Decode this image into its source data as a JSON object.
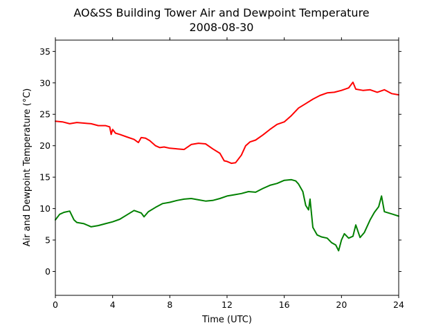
{
  "chart_data": {
    "type": "line",
    "title": "AO&SS Building Tower Air and Dewpoint Temperature",
    "subtitle": "2008-08-30",
    "xlabel": "Time (UTC)",
    "ylabel": "Air and Dewpoint Temperature (°C)",
    "xlim": [
      0,
      24
    ],
    "ylim": [
      -3.8,
      36.8
    ],
    "xticks": [
      0,
      4,
      8,
      12,
      16,
      20,
      24
    ],
    "yticks": [
      0,
      5,
      10,
      15,
      20,
      25,
      30,
      35
    ],
    "grid": false,
    "legend": "none",
    "series": [
      {
        "color": "#ff0000",
        "x": [
          0,
          0.5,
          1,
          1.5,
          2,
          2.5,
          3,
          3.5,
          3.8,
          3.9,
          4.0,
          4.2,
          4.5,
          5,
          5.5,
          5.8,
          6,
          6.3,
          6.6,
          7,
          7.3,
          7.6,
          8,
          8.5,
          9,
          9.5,
          10,
          10.5,
          11,
          11.5,
          11.8,
          12,
          12.3,
          12.6,
          13,
          13.3,
          13.6,
          14,
          14.5,
          15,
          15.5,
          16,
          16.5,
          17,
          17.5,
          18,
          18.5,
          19,
          19.5,
          20,
          20.5,
          20.8,
          21,
          21.5,
          22,
          22.5,
          23,
          23.5,
          24
        ],
        "values": [
          23.9,
          23.8,
          23.5,
          23.7,
          23.6,
          23.5,
          23.2,
          23.2,
          23.0,
          21.8,
          22.6,
          22.0,
          21.8,
          21.4,
          21.0,
          20.5,
          21.3,
          21.2,
          20.8,
          20.0,
          19.7,
          19.8,
          19.6,
          19.5,
          19.4,
          20.2,
          20.4,
          20.3,
          19.5,
          18.8,
          17.6,
          17.5,
          17.2,
          17.3,
          18.5,
          20.0,
          20.6,
          20.9,
          21.7,
          22.6,
          23.4,
          23.8,
          24.8,
          26.0,
          26.7,
          27.4,
          28.0,
          28.4,
          28.5,
          28.8,
          29.2,
          30.1,
          29.0,
          28.8,
          28.9,
          28.5,
          28.9,
          28.3,
          28.1
        ]
      },
      {
        "color": "#008000",
        "x": [
          0,
          0.3,
          0.6,
          1,
          1.3,
          1.5,
          2,
          2.5,
          3,
          3.5,
          4,
          4.5,
          5,
          5.5,
          6,
          6.2,
          6.5,
          7,
          7.5,
          8,
          8.5,
          9,
          9.5,
          10,
          10.5,
          11,
          11.5,
          12,
          12.5,
          13,
          13.5,
          14,
          14.5,
          15,
          15.5,
          16,
          16.5,
          16.8,
          17,
          17.3,
          17.5,
          17.7,
          17.8,
          18,
          18.3,
          18.6,
          19,
          19.3,
          19.6,
          19.8,
          20,
          20.2,
          20.5,
          20.8,
          21,
          21.3,
          21.6,
          22,
          22.3,
          22.6,
          22.8,
          23,
          23.3,
          23.6,
          24
        ],
        "values": [
          8.2,
          9.1,
          9.4,
          9.6,
          8.2,
          7.8,
          7.6,
          7.1,
          7.3,
          7.6,
          7.9,
          8.3,
          9.0,
          9.7,
          9.3,
          8.7,
          9.5,
          10.2,
          10.8,
          11.0,
          11.3,
          11.5,
          11.6,
          11.4,
          11.2,
          11.3,
          11.6,
          12.0,
          12.2,
          12.4,
          12.7,
          12.6,
          13.2,
          13.7,
          14.0,
          14.5,
          14.6,
          14.4,
          13.9,
          12.7,
          10.5,
          9.8,
          11.5,
          7.0,
          5.8,
          5.5,
          5.3,
          4.6,
          4.2,
          3.3,
          5.0,
          6.0,
          5.3,
          5.6,
          7.4,
          5.4,
          6.2,
          8.2,
          9.4,
          10.3,
          12.0,
          9.5,
          9.3,
          9.1,
          8.8
        ]
      }
    ]
  }
}
